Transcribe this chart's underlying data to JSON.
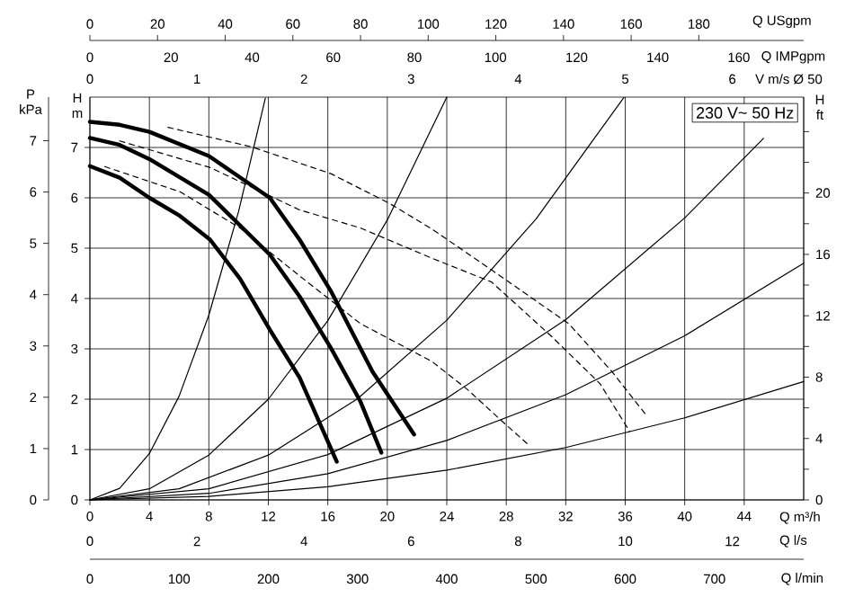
{
  "chart_data": {
    "type": "line",
    "xlabel": "Q m³/h",
    "ylabel": "H m",
    "y2label": "H ft",
    "y3label": "P kPa",
    "x2label": "Q USgpm",
    "annotations": [
      "230 V~ 50 Hz",
      "0",
      "20",
      "40",
      "60",
      "80",
      "100",
      "120",
      "140",
      "160",
      "Q IMPgpm",
      "0",
      "1",
      "2",
      "3",
      "4",
      "5",
      "6",
      "V m/s Ø 50",
      "0",
      "2",
      "4",
      "6",
      "8",
      "10",
      "12",
      "Q l/s",
      "0",
      "100",
      "200",
      "300",
      "400",
      "500",
      "600",
      "700",
      "Q l/min"
    ],
    "xlim": [
      0,
      48
    ],
    "xticks": [
      0,
      4,
      8,
      12,
      16,
      20,
      24,
      28,
      32,
      36,
      40,
      44
    ],
    "ylim": [
      0,
      8
    ],
    "yticks": [
      0,
      1,
      2,
      3,
      4,
      5,
      6,
      7
    ],
    "y2lim": [
      0,
      26.25
    ],
    "y2ticks": [
      0,
      {
        "value": 2,
        "label": null
      },
      4,
      {
        "value": 6,
        "label": null
      },
      8,
      {
        "value": 10,
        "label": null
      },
      12,
      {
        "value": 14,
        "label": null
      },
      16,
      {
        "value": 18,
        "label": null
      },
      20,
      {
        "value": 22,
        "label": null
      },
      {
        "value": 24,
        "label": null
      }
    ],
    "y3lim": [
      0,
      7.85
    ],
    "y3ticks": [
      0,
      1,
      2,
      3,
      4,
      5,
      6,
      7
    ],
    "x2lim": [
      0,
      211
    ],
    "x2ticks": [
      0,
      20,
      40,
      60,
      80,
      100,
      120,
      140,
      160,
      180
    ],
    "grid": true,
    "marker": "none",
    "series": [
      {
        "color": "#000000",
        "line_style": "solid",
        "x": [
          0,
          2,
          4,
          6.06,
          8.08,
          10.1,
          12.1,
          14.1,
          16.6
        ],
        "values": [
          6.63,
          6.4,
          6.0,
          5.64,
          5.17,
          4.39,
          3.38,
          2.43,
          0.76
        ]
      },
      {
        "color": "#000000",
        "line_style": "solid",
        "x": [
          0,
          2,
          4,
          8,
          12.1,
          14.1,
          16.2,
          18.2,
          19.6
        ],
        "values": [
          7.19,
          7.05,
          6.77,
          6.06,
          4.87,
          4.04,
          3.02,
          1.95,
          0.94
        ]
      },
      {
        "color": "#000000",
        "line_style": "solid",
        "x": [
          0,
          2,
          4,
          8,
          12.1,
          14.1,
          16.2,
          19,
          21.8
        ],
        "values": [
          7.51,
          7.45,
          7.31,
          6.83,
          6.0,
          5.17,
          4.15,
          2.55,
          1.3
        ]
      },
      {
        "color": "#000000",
        "line_style": "dashed",
        "x": [
          5.25,
          10.9,
          16.2,
          20.2,
          23,
          27,
          32.2,
          35.1,
          37.5
        ],
        "values": [
          7.4,
          7.01,
          6.48,
          5.88,
          5.38,
          4.57,
          3.5,
          2.55,
          1.65
        ]
      },
      {
        "color": "#000000",
        "line_style": "dashed",
        "x": [
          2,
          8.1,
          14.1,
          18.2,
          23,
          27,
          31,
          34.3,
          36.3
        ],
        "values": [
          7.13,
          6.6,
          5.76,
          5.4,
          4.8,
          4.33,
          3.26,
          2.31,
          1.36
        ]
      },
      {
        "color": "#000000",
        "line_style": "dashed",
        "x": [
          1,
          6.06,
          10.1,
          14.1,
          18.2,
          21.4,
          23,
          25.4,
          27.8,
          29.4
        ],
        "values": [
          6.62,
          6.12,
          5.4,
          4.45,
          3.5,
          3.0,
          2.75,
          2.19,
          1.54,
          1.12
        ]
      },
      {
        "color": "#000000",
        "line_style": "solid",
        "x": [
          0,
          2,
          4,
          6,
          8,
          10,
          11.8
        ],
        "values": [
          0,
          0.23,
          0.92,
          2.06,
          3.67,
          5.73,
          7.98
        ]
      },
      {
        "color": "#000000",
        "line_style": "solid",
        "x": [
          0,
          4,
          8,
          12,
          16,
          20,
          24
        ],
        "values": [
          0,
          0.22,
          0.89,
          2.0,
          3.56,
          5.56,
          8.0
        ]
      },
      {
        "color": "#000000",
        "line_style": "solid",
        "x": [
          0,
          6,
          12,
          18,
          24,
          30,
          35.9
        ],
        "values": [
          0,
          0.22,
          0.89,
          2.01,
          3.57,
          5.58,
          7.99
        ]
      },
      {
        "color": "#000000",
        "line_style": "solid",
        "x": [
          0,
          8,
          16,
          24,
          32,
          40,
          45.3
        ],
        "values": [
          0,
          0.22,
          0.9,
          2.02,
          3.58,
          5.6,
          7.18
        ]
      },
      {
        "color": "#000000",
        "line_style": "solid",
        "x": [
          0,
          8,
          16,
          24,
          32,
          40,
          48
        ],
        "values": [
          0,
          0.13,
          0.52,
          1.18,
          2.09,
          3.26,
          4.7
        ]
      },
      {
        "color": "#000000",
        "line_style": "solid",
        "x": [
          0,
          8,
          16,
          24,
          32,
          40,
          48
        ],
        "values": [
          0,
          0.07,
          0.26,
          0.59,
          1.04,
          1.63,
          2.35
        ]
      }
    ]
  }
}
